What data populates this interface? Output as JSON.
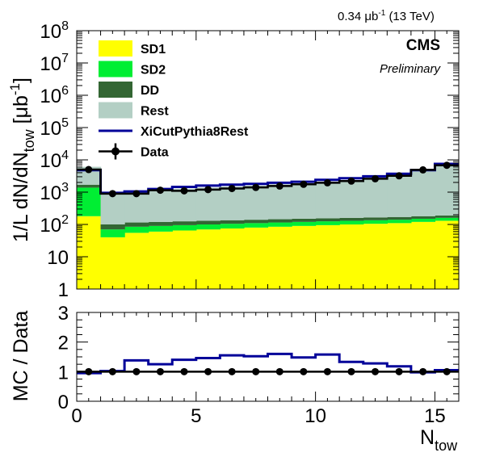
{
  "header": {
    "lumi": "0.34 μb",
    "lumi_exp": "-1",
    "energy": "(13 TeV)",
    "experiment": "CMS",
    "status": "Preliminary"
  },
  "chart_data": [
    {
      "type": "area",
      "panel": "upper",
      "ylabel": {
        "main": "1/L dN/dN",
        "sub": "tow",
        "unit_pre": " [μb",
        "unit_exp": "-1",
        "unit_post": "]"
      },
      "yscale": "log",
      "ylim": [
        1,
        100000000
      ],
      "xlim": [
        0,
        16
      ],
      "ytick_labels": [
        {
          "value": 1,
          "base": "1",
          "exp": ""
        },
        {
          "value": 10,
          "base": "10",
          "exp": ""
        },
        {
          "value": 100,
          "base": "10",
          "exp": "2"
        },
        {
          "value": 1000,
          "base": "10",
          "exp": "3"
        },
        {
          "value": 10000,
          "base": "10",
          "exp": "4"
        },
        {
          "value": 100000,
          "base": "10",
          "exp": "5"
        },
        {
          "value": 1000000,
          "base": "10",
          "exp": "6"
        },
        {
          "value": 10000000,
          "base": "10",
          "exp": "7"
        },
        {
          "value": 100000000,
          "base": "10",
          "exp": "8"
        }
      ],
      "bin_edges": [
        0,
        1,
        2,
        3,
        4,
        5,
        6,
        7,
        8,
        9,
        10,
        11,
        12,
        13,
        14,
        15,
        16
      ],
      "stack": [
        {
          "name": "SD1",
          "color": "#ffff00",
          "values": [
            180,
            40,
            55,
            60,
            65,
            70,
            75,
            80,
            85,
            90,
            95,
            100,
            105,
            110,
            120,
            130
          ]
        },
        {
          "name": "SD2",
          "color": "#00ee33",
          "values": [
            1200,
            30,
            30,
            30,
            30,
            30,
            30,
            30,
            30,
            30,
            30,
            30,
            30,
            30,
            30,
            30
          ]
        },
        {
          "name": "DD",
          "color": "#336633",
          "values": [
            320,
            30,
            30,
            30,
            30,
            30,
            30,
            30,
            30,
            30,
            30,
            30,
            30,
            30,
            30,
            30
          ]
        },
        {
          "name": "Rest",
          "color": "#b3cfc4",
          "values": [
            4400,
            800,
            900,
            1050,
            1150,
            1250,
            1350,
            1450,
            1600,
            1750,
            1950,
            2200,
            2600,
            3200,
            4400,
            6700
          ]
        }
      ],
      "series": [
        {
          "name": "XiCutPythia8Rest",
          "color": "#000099",
          "values": [
            4800,
            950,
            1050,
            1250,
            1450,
            1600,
            1700,
            1800,
            1950,
            2100,
            2400,
            2700,
            3100,
            3700,
            4800,
            7500
          ]
        },
        {
          "name": "Data",
          "color": "#000000",
          "values": [
            5000,
            900,
            900,
            1150,
            1100,
            1200,
            1300,
            1400,
            1550,
            1750,
            1950,
            2200,
            2600,
            3200,
            4900,
            6800
          ]
        }
      ],
      "legend": "top-left"
    },
    {
      "type": "line",
      "panel": "lower",
      "ylabel": "MC / Data",
      "xlabel": {
        "main": "N",
        "sub": "tow"
      },
      "xlim": [
        0,
        16
      ],
      "ylim": [
        0,
        3
      ],
      "xticks": [
        0,
        5,
        10,
        15
      ],
      "yticks": [
        0,
        1,
        2,
        3
      ],
      "bin_edges": [
        0,
        1,
        2,
        3,
        4,
        5,
        6,
        7,
        8,
        9,
        10,
        11,
        12,
        13,
        14,
        15,
        16
      ],
      "series": [
        {
          "name": "XiCutPythia8Rest",
          "color": "#000099",
          "values": [
            0.95,
            1.02,
            1.38,
            1.25,
            1.4,
            1.46,
            1.55,
            1.52,
            1.6,
            1.48,
            1.58,
            1.33,
            1.28,
            1.18,
            0.98,
            1.05
          ]
        },
        {
          "name": "Data",
          "color": "#000000",
          "values": [
            1,
            1,
            1,
            1,
            1,
            1,
            1,
            1,
            1,
            1,
            1,
            1,
            1,
            1,
            1,
            1
          ]
        }
      ]
    }
  ]
}
